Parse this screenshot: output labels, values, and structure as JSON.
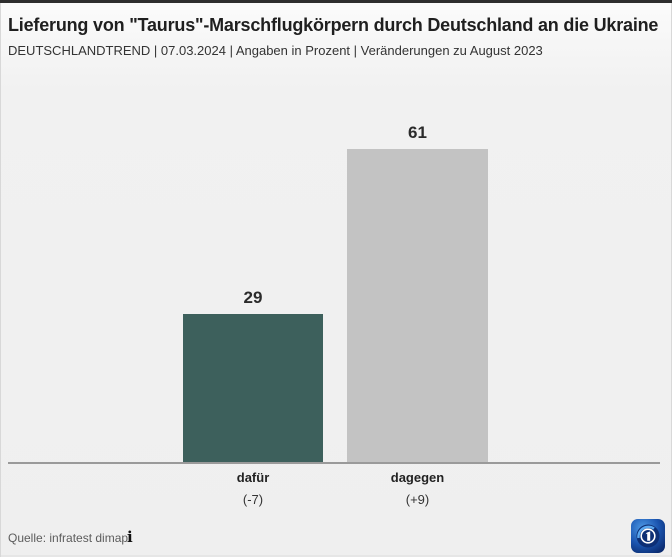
{
  "header": {
    "title": "Lieferung von \"Taurus\"-Marschflugkörpern durch Deutschland an die Ukraine",
    "subtitle": "DEUTSCHLANDTREND | 07.03.2024 | Angaben in Prozent | Veränderungen zu August 2023"
  },
  "chart_data": {
    "type": "bar",
    "title": "Lieferung von \"Taurus\"-Marschflugkörpern durch Deutschland an die Ukraine",
    "source_line": "DEUTSCHLANDTREND | 07.03.2024 | Angaben in Prozent | Veränderungen zu August 2023",
    "unit": "Prozent",
    "categories": [
      "dafür",
      "dagegen"
    ],
    "values": [
      29,
      61
    ],
    "change_labels": [
      "(-7)",
      "(+9)"
    ],
    "comparison_period": "August 2023",
    "bar_colors": [
      "#3d605c",
      "#c3c3c3"
    ],
    "ylim": [
      0,
      70
    ],
    "grid": false,
    "legend": false,
    "value_labels_shown": true,
    "baseline_color": "#9a9a9a",
    "background_color": "#f0f0f0"
  },
  "footer": {
    "source": "Quelle: infratest dimap",
    "info_icon_glyph": "i"
  },
  "colors": {
    "top_border": "#2e2e2e",
    "ard_brand_blue": "#1b55b0"
  }
}
